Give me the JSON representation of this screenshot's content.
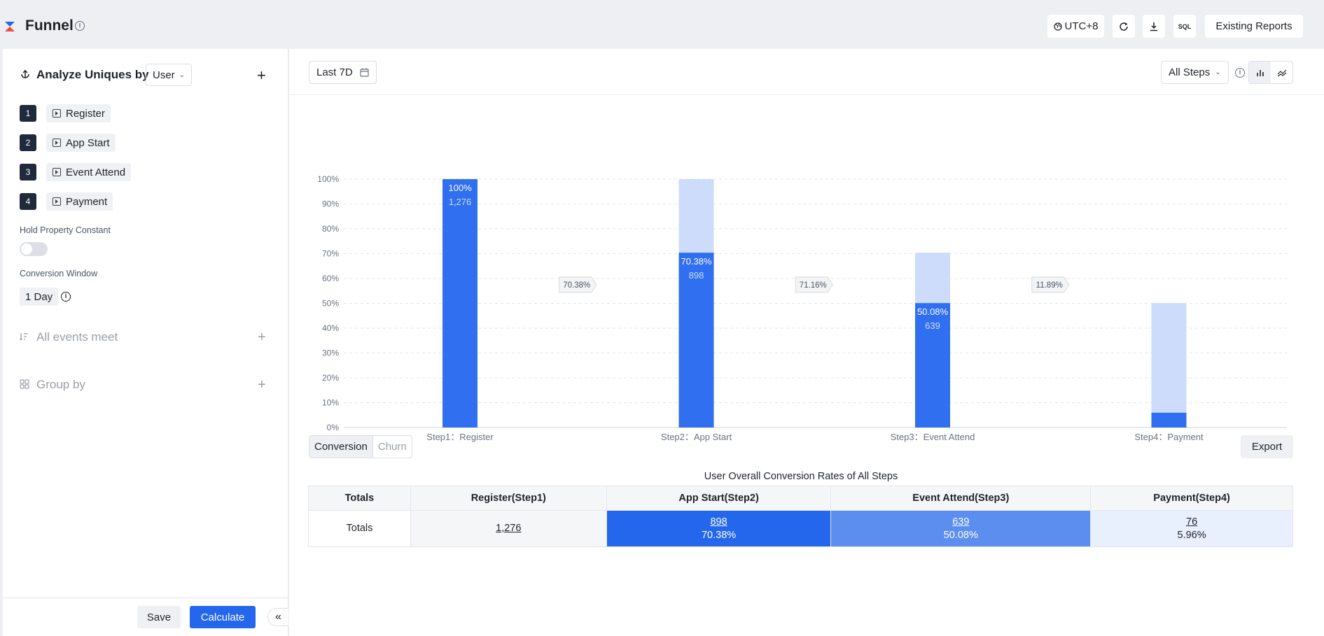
{
  "header": {
    "title": "Funnel",
    "timezone": "UTC+8",
    "sql_label": "SQL",
    "existing_reports": "Existing Reports"
  },
  "left": {
    "analyze_label": "Analyze Uniques by",
    "analyze_value": "User",
    "steps": [
      {
        "num": "1",
        "label": "Register"
      },
      {
        "num": "2",
        "label": "App Start"
      },
      {
        "num": "3",
        "label": "Event Attend"
      },
      {
        "num": "4",
        "label": "Payment"
      }
    ],
    "hold_label": "Hold Property Constant",
    "window_label": "Conversion Window",
    "window_value": "1 Day",
    "events_meet": "All events meet",
    "group_by": "Group by",
    "save": "Save",
    "calculate": "Calculate",
    "collapse": "«"
  },
  "main": {
    "date_range": "Last 7D",
    "steps_select": "All Steps",
    "tabs": [
      "Conversion",
      "Churn"
    ],
    "export": "Export",
    "table_caption": "User Overall Conversion Rates of All Steps",
    "table": {
      "headers": [
        "Totals",
        "Register(Step1)",
        "App Start(Step2)",
        "Event Attend(Step3)",
        "Payment(Step4)"
      ],
      "row_label": "Totals",
      "cells": [
        {
          "value": "1,276",
          "rate": ""
        },
        {
          "value": "898",
          "rate": "70.38%"
        },
        {
          "value": "639",
          "rate": "50.08%"
        },
        {
          "value": "76",
          "rate": "5.96%"
        }
      ]
    }
  },
  "colors": {
    "bar": "#2f6ff0",
    "bar_prev": "#cddcfb",
    "accent": "#2467ec"
  },
  "chart_data": {
    "type": "bar",
    "categories": [
      "Step1：Register",
      "Step2：App Start",
      "Step3：Event Attend",
      "Step4：Payment"
    ],
    "values": [
      100,
      70.38,
      50.08,
      5.96
    ],
    "counts": [
      "1,276",
      "898",
      "639",
      "76"
    ],
    "value_labels": [
      "100%",
      "70.38%",
      "50.08%",
      ""
    ],
    "previous_step": [
      null,
      100,
      70.38,
      50.08
    ],
    "step_conversion": [
      "70.38%",
      "71.16%",
      "11.89%"
    ],
    "yticks": [
      "0%",
      "10%",
      "20%",
      "30%",
      "40%",
      "50%",
      "60%",
      "70%",
      "80%",
      "90%",
      "100%"
    ],
    "ylim": [
      0,
      100
    ],
    "grid": true
  }
}
